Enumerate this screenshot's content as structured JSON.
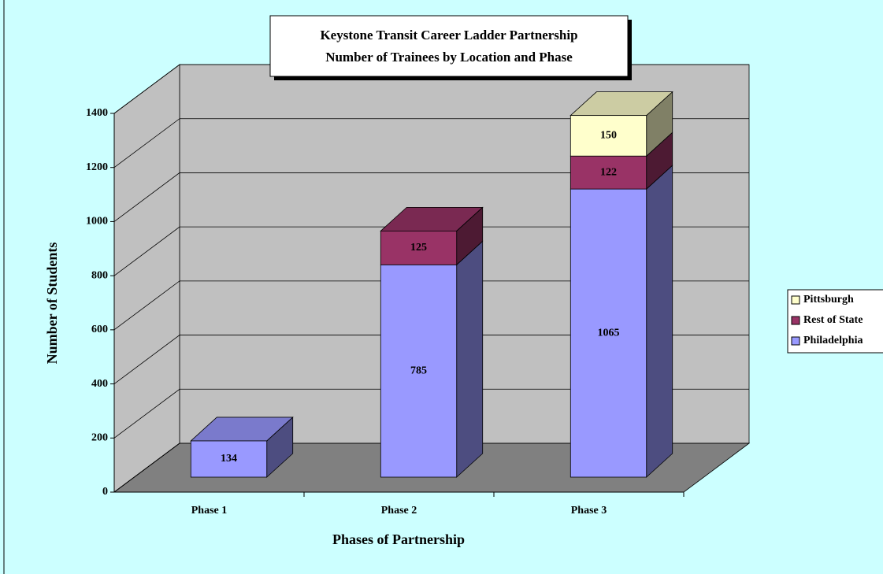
{
  "chart_data": {
    "type": "bar3d_stacked",
    "title": "Keystone Transit Career Ladder Partnership",
    "subtitle": "Number of Trainees by Location and Phase",
    "x_label": "Phases of Partnership",
    "y_label": "Number of Students",
    "categories": [
      "Phase 1",
      "Phase 2",
      "Phase 3"
    ],
    "series": [
      {
        "name": "Philadelphia",
        "color": "#9999ff",
        "values": [
          134,
          785,
          1065
        ]
      },
      {
        "name": "Rest of State",
        "color": "#993366",
        "values": [
          null,
          125,
          122
        ]
      },
      {
        "name": "Pittsburgh",
        "color": "#ffffcc",
        "values": [
          null,
          null,
          150
        ]
      }
    ],
    "ylim": [
      0,
      1400
    ],
    "yticks": [
      0,
      200,
      400,
      600,
      800,
      1000,
      1200,
      1400
    ],
    "grid": true,
    "legend": "right"
  }
}
